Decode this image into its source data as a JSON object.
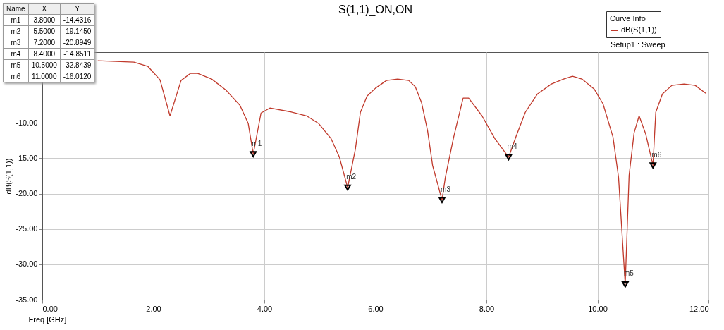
{
  "chart_data": {
    "type": "line",
    "title": "S(1,1)_ON,ON",
    "xlabel": "Freq [GHz]",
    "ylabel": "dB(S(1,1))",
    "legend_title": "Curve Info",
    "xlim": [
      0,
      12
    ],
    "ylim": [
      -35,
      0
    ],
    "xticks": [
      {
        "value": 0,
        "label": "0.00"
      },
      {
        "value": 2,
        "label": "2.00"
      },
      {
        "value": 4,
        "label": "4.00"
      },
      {
        "value": 6,
        "label": "6.00"
      },
      {
        "value": 8,
        "label": "8.00"
      },
      {
        "value": 10,
        "label": "10.00"
      },
      {
        "value": 12,
        "label": "12.00"
      }
    ],
    "yticks": [
      {
        "value": -35,
        "label": "-35.00"
      },
      {
        "value": -30,
        "label": "-30.00"
      },
      {
        "value": -25,
        "label": "-25.00"
      },
      {
        "value": -20,
        "label": "-20.00"
      },
      {
        "value": -15,
        "label": "-15.00"
      },
      {
        "value": -10,
        "label": "-10.00"
      }
    ],
    "grid": true,
    "legend": "top right",
    "line_style": "solid",
    "series": [
      {
        "name": "dB(S(1,1))",
        "color": "#c0392b",
        "x": [
          1.0,
          1.65,
          1.9,
          2.12,
          2.3,
          2.5,
          2.67,
          2.8,
          3.05,
          3.3,
          3.56,
          3.71,
          3.8,
          3.94,
          4.1,
          4.45,
          4.76,
          4.98,
          5.2,
          5.35,
          5.5,
          5.64,
          5.73,
          5.85,
          6.0,
          6.2,
          6.4,
          6.6,
          6.72,
          6.83,
          6.94,
          7.03,
          7.2,
          7.26,
          7.41,
          7.58,
          7.68,
          7.92,
          8.15,
          8.4,
          8.53,
          8.7,
          8.92,
          9.17,
          9.39,
          9.55,
          9.72,
          9.94,
          10.1,
          10.28,
          10.38,
          10.5,
          10.57,
          10.66,
          10.75,
          10.87,
          11.0,
          11.05,
          11.17,
          11.34,
          11.56,
          11.76,
          11.95
        ],
        "values": [
          -1.2,
          -1.4,
          -2.0,
          -3.9,
          -9.0,
          -4.0,
          -3.0,
          -3.0,
          -3.8,
          -5.3,
          -7.5,
          -10.1,
          -14.4316,
          -8.6,
          -7.9,
          -8.4,
          -9.0,
          -10.1,
          -12.2,
          -14.8,
          -19.145,
          -13.7,
          -8.5,
          -6.2,
          -5.1,
          -4.0,
          -3.8,
          -4.0,
          -4.9,
          -7.1,
          -11.1,
          -16.0,
          -20.8949,
          -17.7,
          -12.0,
          -6.5,
          -6.5,
          -9.0,
          -12.2,
          -14.8511,
          -12.0,
          -8.5,
          -5.9,
          -4.5,
          -3.8,
          -3.4,
          -3.8,
          -5.2,
          -7.3,
          -12.0,
          -17.7,
          -32.8439,
          -17.4,
          -11.4,
          -9.0,
          -11.6,
          -16.012,
          -8.5,
          -5.9,
          -4.7,
          -4.5,
          -4.7,
          -5.8
        ]
      },
      {
        "type": "scatter",
        "marker": "triangle",
        "color": "#000000",
        "x": [
          3.8,
          5.5,
          7.2,
          8.4,
          10.5,
          11.0
        ],
        "values": [
          -14.4316,
          -19.145,
          -20.8949,
          -14.8511,
          -32.8439,
          -16.012
        ],
        "value_labels": [
          "m1",
          "m2",
          "m3",
          "m4",
          "m5",
          "m6"
        ]
      }
    ],
    "annotations": [
      "Name",
      "X",
      "Y",
      "m1",
      "3.8000",
      "-14.4316",
      "m2",
      "5.5000",
      "-19.1450",
      "m3",
      "7.2000",
      "-20.8949",
      "m4",
      "8.4000",
      "-14.8511",
      "m5",
      "10.5000",
      "-32.8439",
      "m6",
      "11.0000",
      "-16.0120",
      "Setup1 : Sweep"
    ]
  }
}
